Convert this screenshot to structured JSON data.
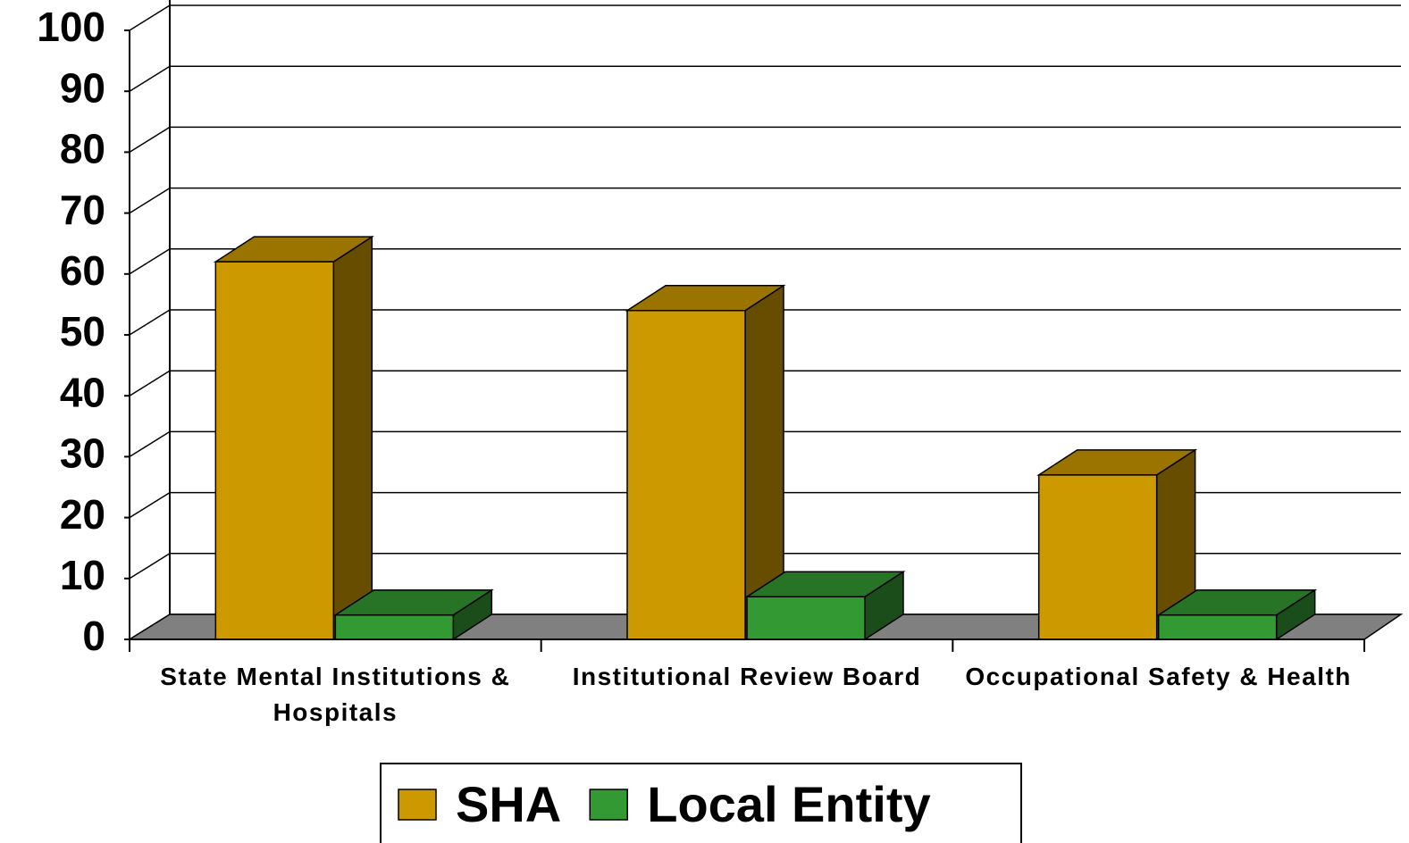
{
  "chart_data": {
    "type": "bar3d",
    "categories": [
      "State Mental Institutions & Hospitals",
      "Institutional Review Board",
      "Occupational Safety & Health"
    ],
    "series": [
      {
        "name": "SHA",
        "color": "#cc9900",
        "values": [
          62,
          54,
          27
        ]
      },
      {
        "name": "Local Entity",
        "color": "#339933",
        "values": [
          4,
          7,
          4
        ]
      }
    ],
    "ylim": [
      0,
      100
    ],
    "yticks": [
      0,
      10,
      20,
      30,
      40,
      50,
      60,
      70,
      80,
      90,
      100
    ],
    "grid": true,
    "legend": "bottom"
  }
}
